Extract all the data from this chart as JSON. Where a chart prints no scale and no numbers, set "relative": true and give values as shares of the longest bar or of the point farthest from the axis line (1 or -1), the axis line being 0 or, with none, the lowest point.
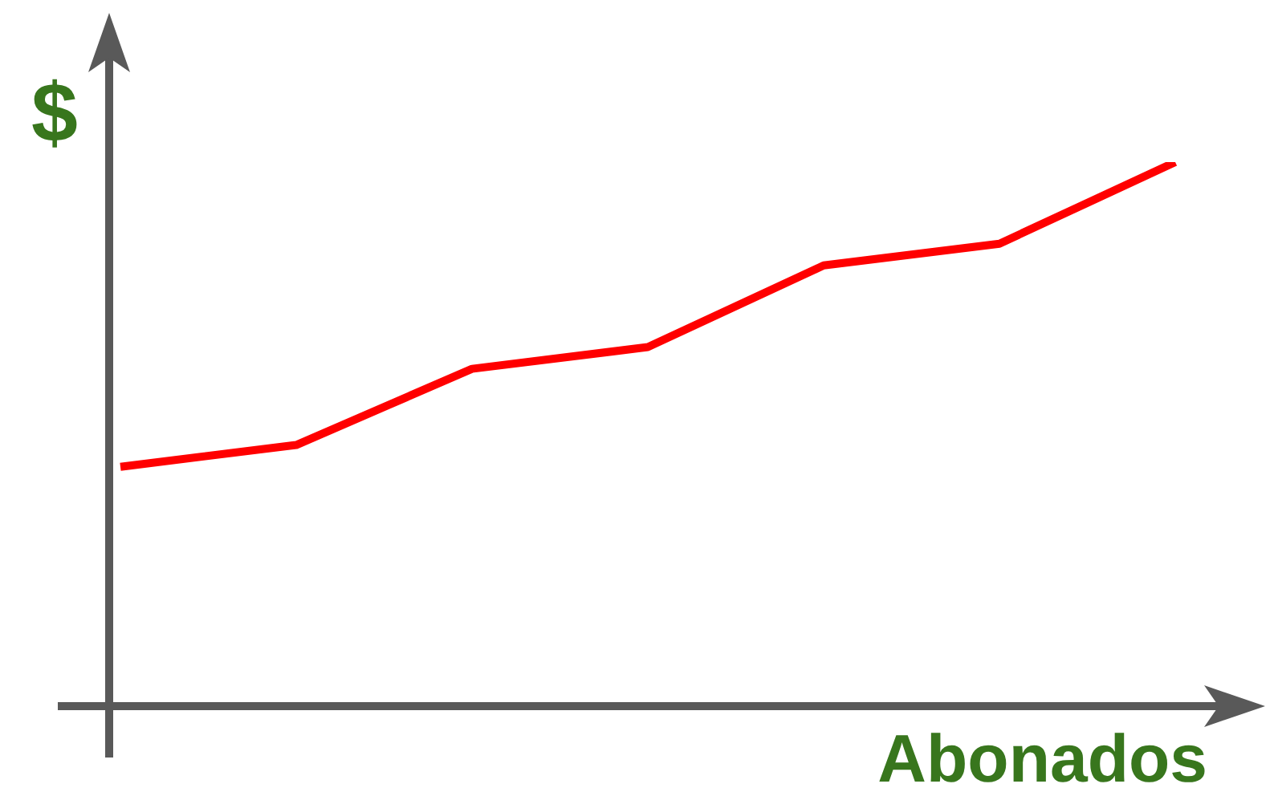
{
  "chart_data": {
    "type": "line",
    "relative": true,
    "xlabel": "Abonados",
    "ylabel": "$",
    "categories": [
      null,
      null,
      null,
      null,
      null,
      null,
      null
    ],
    "series": [
      {
        "color": "#ff0000",
        "values": [
          0.44,
          0.48,
          0.62,
          0.66,
          0.81,
          0.85,
          1
        ]
      }
    ],
    "grid": false,
    "marker": "none",
    "line_style": "solid"
  }
}
